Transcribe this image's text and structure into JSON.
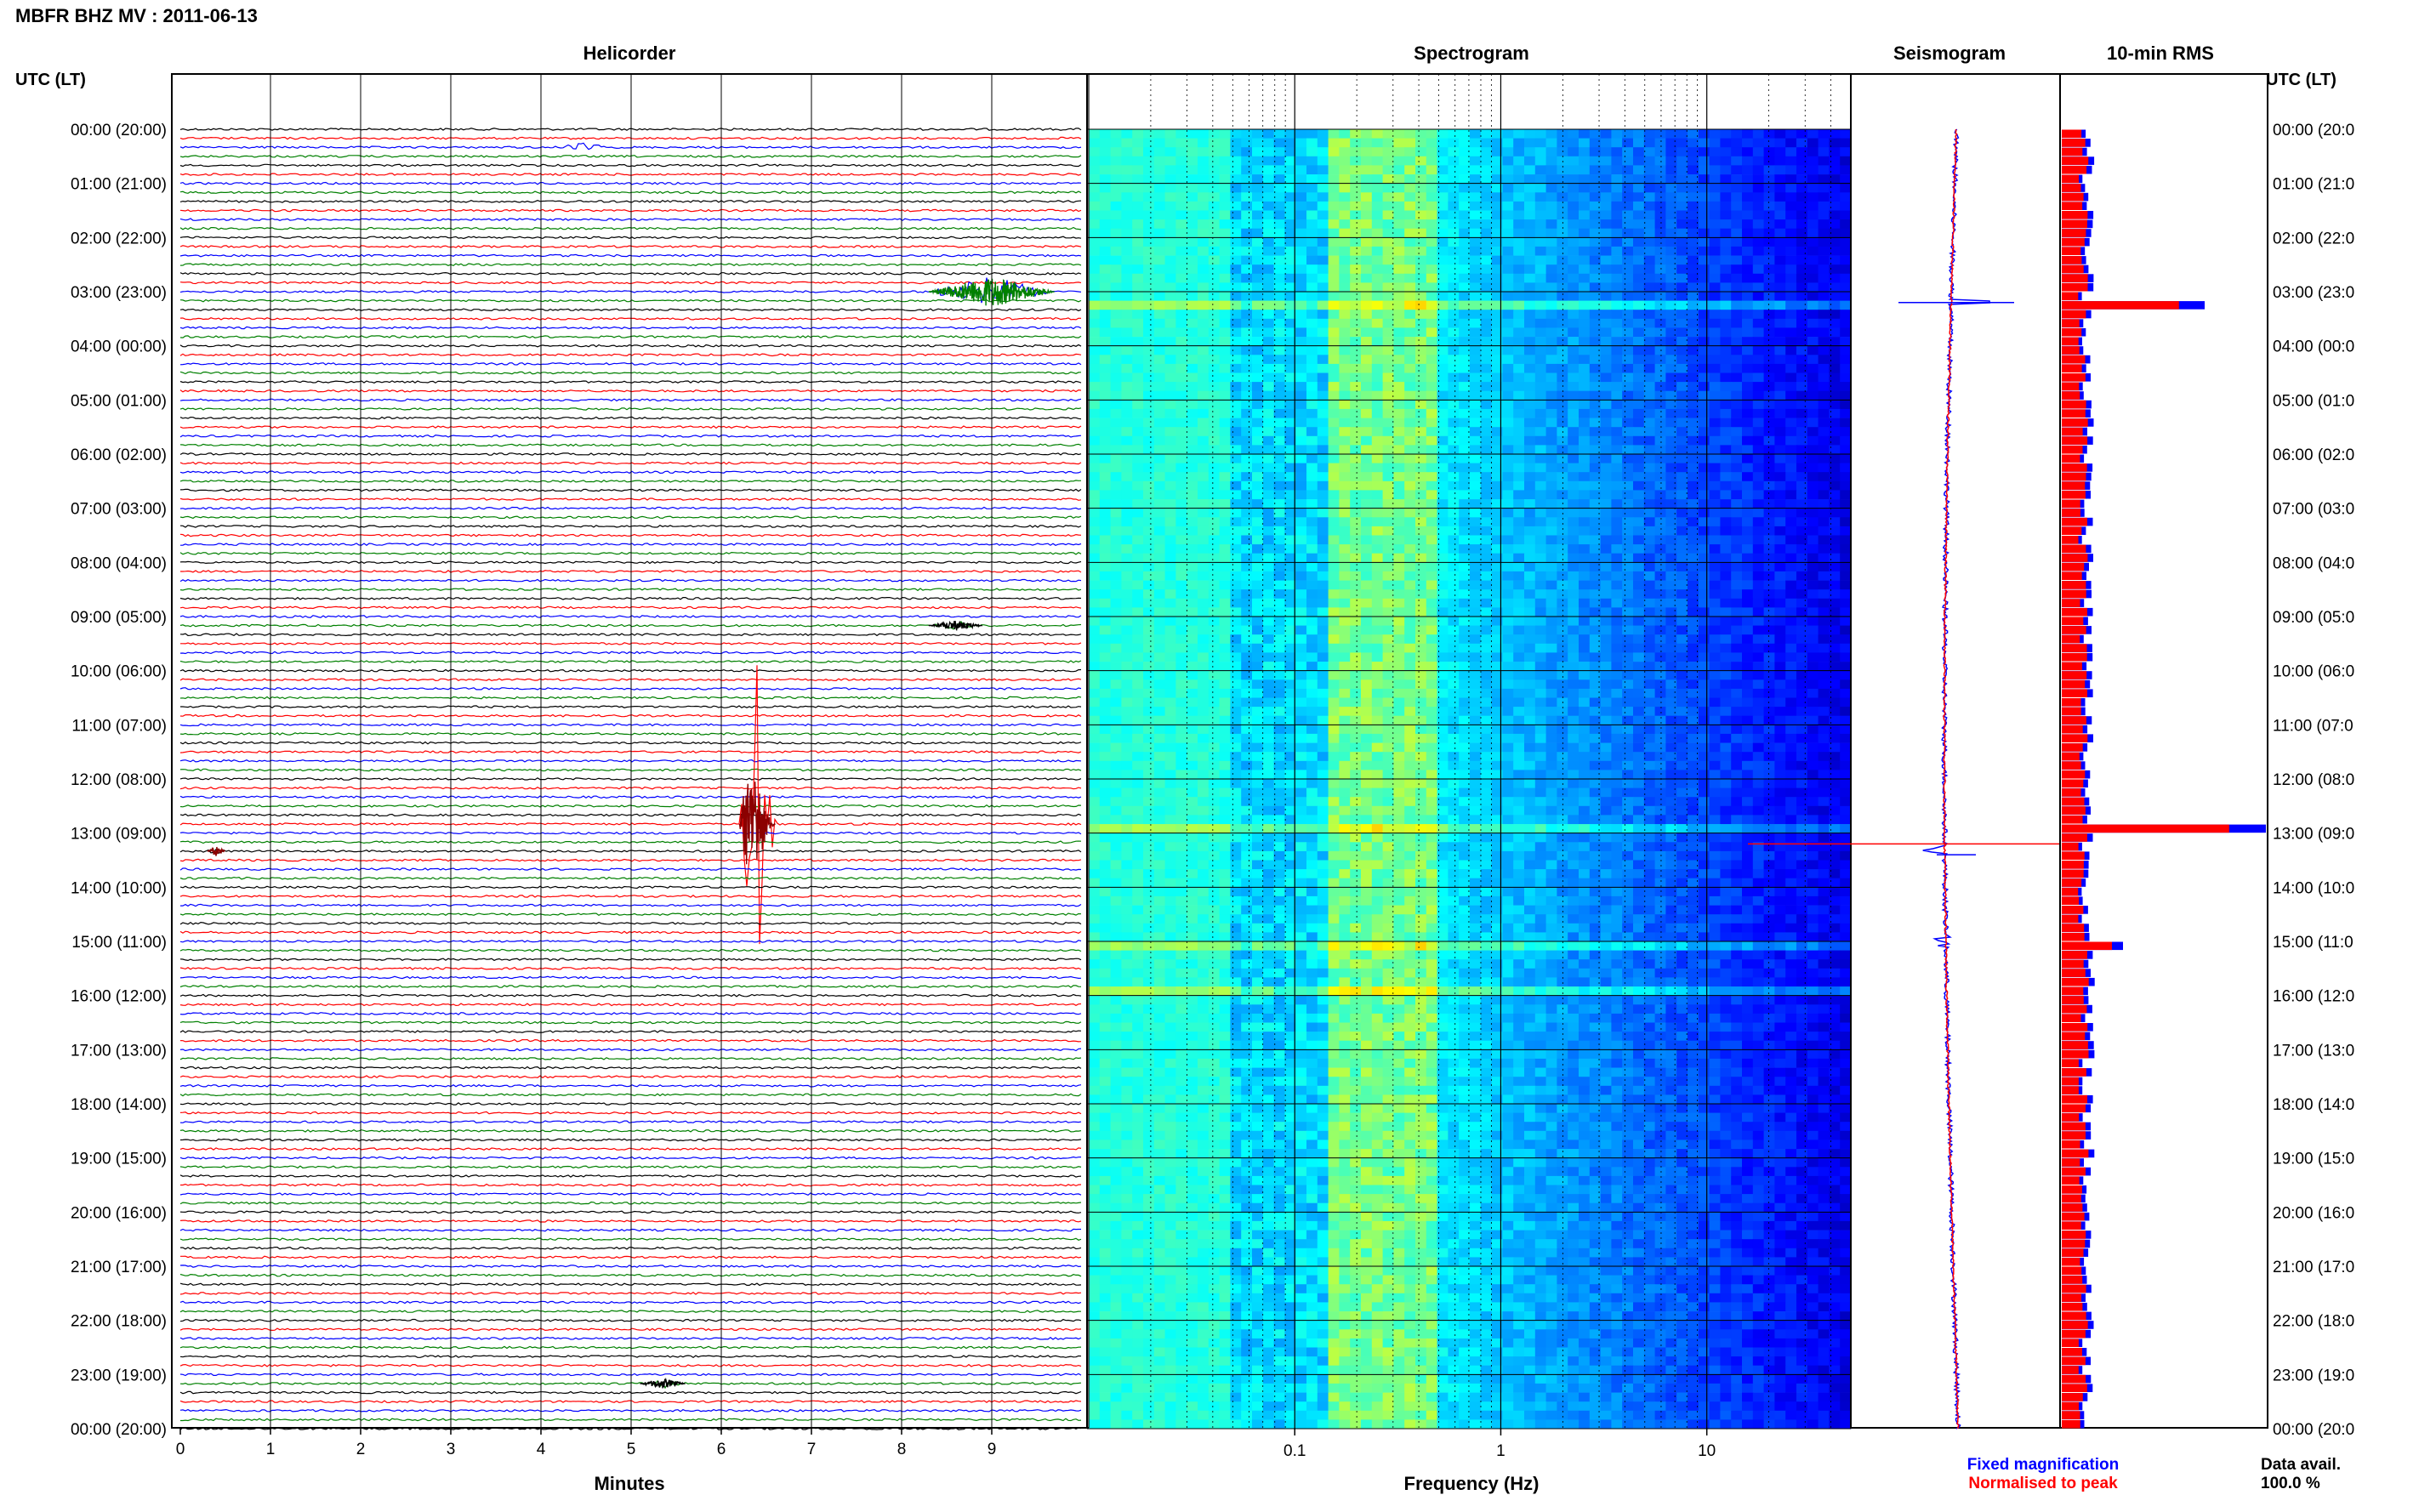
{
  "header": {
    "station_title": "MBFR BHZ MV : 2011-06-13"
  },
  "panels": {
    "helicorder": "Helicorder",
    "spectrogram": "Spectrogram",
    "seismogram": "Seismogram",
    "rms": "10-min RMS"
  },
  "axis": {
    "utc_label_left": "UTC (LT)",
    "utc_label_right": "UTC (LT)",
    "minutes_label": "Minutes",
    "frequency_label": "Frequency (Hz)"
  },
  "time_labels": [
    "00:00 (20:00)",
    "01:00 (21:00)",
    "02:00 (22:00)",
    "03:00 (23:00)",
    "04:00 (00:00)",
    "05:00 (01:00)",
    "06:00 (02:00)",
    "07:00 (03:00)",
    "08:00 (04:00)",
    "09:00 (05:00)",
    "10:00 (06:00)",
    "11:00 (07:00)",
    "12:00 (08:00)",
    "13:00 (09:00)",
    "14:00 (10:00)",
    "15:00 (11:00)",
    "16:00 (12:00)",
    "17:00 (13:00)",
    "18:00 (14:00)",
    "19:00 (15:00)",
    "20:00 (16:00)",
    "21:00 (17:00)",
    "22:00 (18:00)",
    "23:00 (19:00)",
    "00:00 (20:00)"
  ],
  "time_labels_right": [
    "00:00 (20:0",
    "01:00 (21:0",
    "02:00 (22:0",
    "03:00 (23:0",
    "04:00 (00:0",
    "05:00 (01:0",
    "06:00 (02:0",
    "07:00 (03:0",
    "08:00 (04:0",
    "09:00 (05:0",
    "10:00 (06:0",
    "11:00 (07:0",
    "12:00 (08:0",
    "13:00 (09:0",
    "14:00 (10:0",
    "15:00 (11:0",
    "16:00 (12:0",
    "17:00 (13:0",
    "18:00 (14:0",
    "19:00 (15:0",
    "20:00 (16:0",
    "21:00 (17:0",
    "22:00 (18:0",
    "23:00 (19:0",
    "00:00 (20:0"
  ],
  "minute_ticks": [
    "0",
    "1",
    "2",
    "3",
    "4",
    "5",
    "6",
    "7",
    "8",
    "9"
  ],
  "frequency_ticks": [
    "0.1",
    "1",
    "10"
  ],
  "legend": {
    "fixed": "Fixed magnification",
    "normalised": "Normalised to peak",
    "fixed_color": "#0000ff",
    "normalised_color": "#ff0000"
  },
  "data_avail": {
    "label": "Data avail.",
    "value": "100.0 %"
  },
  "chart_data": {
    "type": "helicorder",
    "helicorder": {
      "x_range_minutes": [
        0,
        10
      ],
      "rows_per_hour": 6,
      "hours": 24,
      "trace_colors": [
        "#000000",
        "#ff0000",
        "#0000ff",
        "#008000"
      ],
      "events": [
        {
          "time": "03:00",
          "minute_start": 8.3,
          "minute_end": 9.7,
          "amplitude": "large",
          "color": "#008000"
        },
        {
          "time": "12:50",
          "minute_start": 6.2,
          "minute_end": 6.6,
          "amplitude": "very large",
          "color": "#8b0000"
        },
        {
          "time": "13:20",
          "minute_start": 0.3,
          "minute_end": 0.5,
          "amplitude": "small",
          "color": "#8b0000"
        },
        {
          "time": "09:10",
          "minute_start": 8.3,
          "minute_end": 8.9,
          "amplitude": "small",
          "color": "#000000"
        },
        {
          "time": "00:20",
          "minute_start": 4.2,
          "minute_end": 4.8,
          "amplitude": "small",
          "color": "#0000ff"
        },
        {
          "time": "23:10",
          "minute_start": 5.1,
          "minute_end": 5.6,
          "amplitude": "small",
          "color": "#000000"
        }
      ]
    },
    "spectrogram": {
      "x_scale": "log",
      "x_range_hz": [
        0.01,
        50
      ],
      "colormap": "jet",
      "high_energy_bands_hz": [
        0.15,
        0.5
      ],
      "event_rows": [
        "03:10",
        "12:50",
        "15:00",
        "15:50"
      ]
    },
    "rms": {
      "bins_per_hour": 6,
      "peaks": [
        {
          "time": "03:10",
          "value_relative": 0.7
        },
        {
          "time": "12:50",
          "value_relative": 1.0
        },
        {
          "time": "15:00",
          "value_relative": 0.3
        }
      ],
      "baseline_relative": 0.13
    }
  }
}
